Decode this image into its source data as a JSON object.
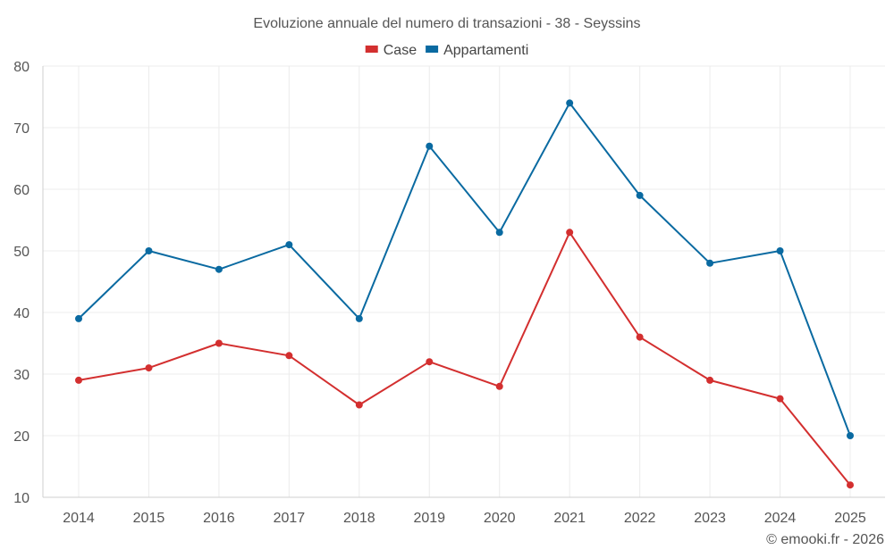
{
  "chart_data": {
    "type": "line",
    "title": "Evoluzione annuale del numero di transazioni - 38 - Seyssins",
    "categories": [
      "2014",
      "2015",
      "2016",
      "2017",
      "2018",
      "2019",
      "2020",
      "2021",
      "2022",
      "2023",
      "2024",
      "2025"
    ],
    "series": [
      {
        "name": "Case",
        "color": "#d32f2f",
        "values": [
          29,
          31,
          35,
          33,
          25,
          32,
          28,
          53,
          36,
          29,
          26,
          12
        ]
      },
      {
        "name": "Appartamenti",
        "color": "#0a6aa1",
        "values": [
          39,
          50,
          47,
          51,
          39,
          67,
          53,
          74,
          59,
          48,
          50,
          20
        ]
      }
    ],
    "ylim": [
      10,
      80
    ],
    "yticks": [
      "10",
      "20",
      "30",
      "40",
      "50",
      "60",
      "70",
      "80"
    ],
    "grid": true,
    "legend": "top-center",
    "xlabel": "",
    "ylabel": ""
  },
  "credit": "© emooki.fr - 2026"
}
